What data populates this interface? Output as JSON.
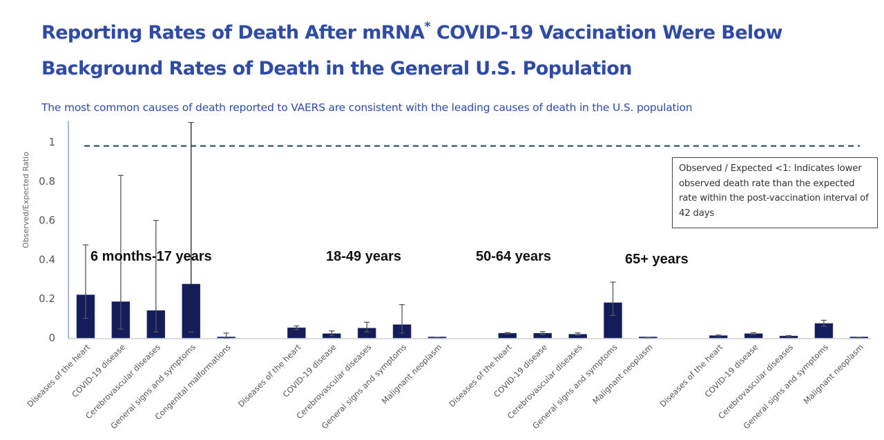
{
  "header": {
    "title_line1_pre": "Reporting Rates of Death After mRNA",
    "title_line1_sup": "*",
    "title_line1_post": " COVID-19 Vaccination Were Below",
    "title_line2": "Background Rates of Death in the General U.S. Population",
    "subtitle": "The most common causes of death reported to VAERS are consistent with the leading causes of death in the U.S. population"
  },
  "note": {
    "text": "Observed / Expected <1: Indicates lower observed death rate than the expected rate within the post-vaccination interval of 42 days"
  },
  "colors": {
    "title": "#2F4BA6",
    "bar": "#141C5A",
    "error_bar": "#555555",
    "reference_line": "#1F3F5F"
  },
  "chart_data": {
    "type": "bar",
    "title": "Reporting Rates of Death After mRNA* COVID-19 Vaccination Were Below Background Rates of Death in the General U.S. Population",
    "xlabel": "",
    "ylabel": "Observed/Expected Ratio",
    "ylim": [
      0,
      1.1
    ],
    "yticks": [
      0,
      0.2,
      0.4,
      0.6,
      0.8,
      1
    ],
    "ytick_labels": [
      "0",
      "0.2",
      "0.4",
      "0.6",
      "0.8",
      "1"
    ],
    "grid": false,
    "reference_line": {
      "y": 0.98,
      "style": "dashed"
    },
    "groups": [
      {
        "label": "6 months-17 years",
        "categories": [
          "Diseases of the heart",
          "COVID-19 disease",
          "Cerebrovascular diseases",
          "General signs and symptoms",
          "Congenital malformations"
        ],
        "values": [
          0.22,
          0.185,
          0.14,
          0.275,
          0.004
        ],
        "ci_low": [
          0.1,
          0.045,
          0.03,
          0.03,
          0.0
        ],
        "ci_high": [
          0.475,
          0.83,
          0.6,
          1.1,
          0.025
        ]
      },
      {
        "label": "18-49 years",
        "categories": [
          "Diseases of the heart",
          "COVID-19 disease",
          "Cerebrovascular diseases",
          "General signs and symptoms",
          "Malignant neoplasm"
        ],
        "values": [
          0.052,
          0.022,
          0.05,
          0.068,
          0.002
        ],
        "ci_low": [
          0.043,
          0.012,
          0.03,
          0.025,
          0.001
        ],
        "ci_high": [
          0.061,
          0.036,
          0.08,
          0.17,
          0.003
        ]
      },
      {
        "label": "50-64 years",
        "categories": [
          "Diseases of the heart",
          "COVID-19 disease",
          "Cerebrovascular diseases",
          "General signs and symptoms",
          "Malignant neoplasm"
        ],
        "values": [
          0.024,
          0.024,
          0.019,
          0.18,
          0.002
        ],
        "ci_low": [
          0.021,
          0.017,
          0.014,
          0.115,
          0.001
        ],
        "ci_high": [
          0.027,
          0.032,
          0.026,
          0.285,
          0.003
        ]
      },
      {
        "label": "65+ years",
        "categories": [
          "Diseases of the heart",
          "COVID-19 disease",
          "Cerebrovascular diseases",
          "General signs and symptoms",
          "Malignant neoplasm"
        ],
        "values": [
          0.012,
          0.022,
          0.01,
          0.074,
          0.002
        ],
        "ci_low": [
          0.01,
          0.018,
          0.008,
          0.06,
          0.001
        ],
        "ci_high": [
          0.015,
          0.027,
          0.012,
          0.09,
          0.003
        ]
      }
    ]
  }
}
